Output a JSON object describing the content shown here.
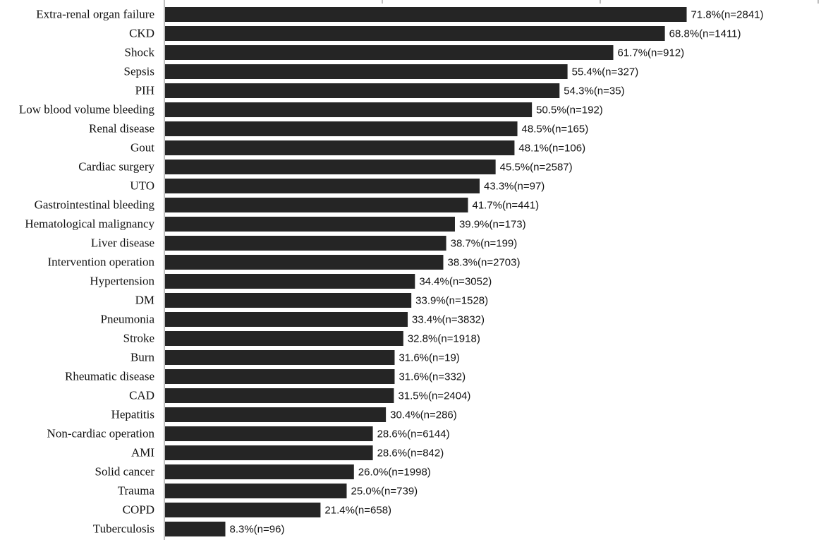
{
  "chart_data": {
    "type": "bar",
    "orientation": "horizontal",
    "title": "",
    "xlabel": "",
    "ylabel": "",
    "xlim": [
      0,
      100
    ],
    "grid": false,
    "legend": "none",
    "bar_color": "#252525",
    "categories": [
      "Extra-renal organ failure",
      "CKD",
      "Shock",
      "Sepsis",
      "PIH",
      "Low blood volume bleeding",
      "Renal disease",
      "Gout",
      "Cardiac surgery",
      "UTO",
      "Gastrointestinal bleeding",
      "Hematological malignancy",
      "Liver disease",
      "Intervention operation",
      "Hypertension",
      "DM",
      "Pneumonia",
      "Stroke",
      "Burn",
      "Rheumatic disease",
      "CAD",
      "Hepatitis",
      "Non-cardiac operation",
      "AMI",
      "Solid cancer",
      "Trauma",
      "COPD",
      "Tuberculosis"
    ],
    "values": [
      71.8,
      68.8,
      61.7,
      55.4,
      54.3,
      50.5,
      48.5,
      48.1,
      45.5,
      43.3,
      41.7,
      39.9,
      38.7,
      38.3,
      34.4,
      33.9,
      33.4,
      32.8,
      31.6,
      31.6,
      31.5,
      30.4,
      28.6,
      28.6,
      26.0,
      25.0,
      21.4,
      8.3
    ],
    "data_labels": [
      "71.8%(n=2841)",
      "68.8%(n=1411)",
      "61.7%(n=912)",
      "55.4%(n=327)",
      "54.3%(n=35)",
      "50.5%(n=192)",
      "48.5%(n=165)",
      "48.1%(n=106)",
      "45.5%(n=2587)",
      "43.3%(n=97)",
      "41.7%(n=441)",
      "39.9%(n=173)",
      "38.7%(n=199)",
      "38.3%(n=2703)",
      "34.4%(n=3052)",
      "33.9%(n=1528)",
      "33.4%(n=3832)",
      "32.8%(n=1918)",
      "31.6%(n=19)",
      "31.6%(n=332)",
      "31.5%(n=2404)",
      "30.4%(n=286)",
      "28.6%(n=6144)",
      "28.6%(n=842)",
      "26.0%(n=1998)",
      "25.0%(n=739)",
      "21.4%(n=658)",
      "8.3%(n=96)"
    ]
  }
}
